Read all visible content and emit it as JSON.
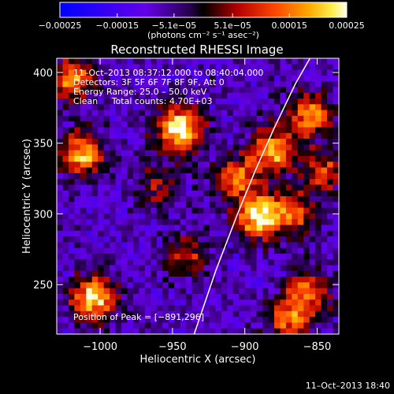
{
  "chart_data": {
    "type": "heatmap",
    "title": "Reconstructed RHESSI Image",
    "xlabel": "Heliocentric X (arcsec)",
    "ylabel": "Heliocentric Y (arcsec)",
    "xlim": [
      -1030,
      -835
    ],
    "ylim": [
      215,
      410
    ],
    "xticks": [
      -1000,
      -950,
      -900,
      -850
    ],
    "xtick_labels": [
      "−1000",
      "−950",
      "−900",
      "−850"
    ],
    "yticks": [
      250,
      300,
      350,
      400
    ],
    "ytick_labels": [
      "250",
      "300",
      "350",
      "400"
    ],
    "grid": false,
    "colorbar": {
      "orientation": "horizontal",
      "placement": "top",
      "colormap": "hot-with-blue-negatives",
      "range": [
        -0.00025,
        0.00025
      ],
      "unit_label": "(photons cm⁻² s⁻¹ asec⁻²)",
      "tick_labels": [
        "−0.00025",
        "−0.00015",
        "−5.1e−05",
        "5.1e−05",
        "0.00015",
        "0.00025"
      ],
      "tick_values": [
        -0.00025,
        -0.00015,
        -5.1e-05,
        5.1e-05,
        0.00015,
        0.00025
      ]
    },
    "info_lines": [
      "11–Oct–2013 08:37:12.000 to 08:40:04.000",
      "Detectors: 3F 5F 6F 7F 8F 9F, Att 0",
      "Energy Range: 25.0 – 50.0 keV",
      "Clean     Total counts: 4.70E+03"
    ],
    "peak_annotation": "Position of Peak = [−891,296]",
    "peak_position": [
      -891,
      296
    ],
    "limb_curve": [
      [
        -935,
        215
      ],
      [
        -920,
        260
      ],
      [
        -905,
        300
      ],
      [
        -893,
        330
      ],
      [
        -880,
        360
      ],
      [
        -865,
        392
      ],
      [
        -855,
        410
      ]
    ],
    "bright_sources": [
      {
        "x": -945,
        "y": 360,
        "intensity": 1.0
      },
      {
        "x": -1012,
        "y": 342,
        "intensity": 0.75
      },
      {
        "x": -1020,
        "y": 395,
        "intensity": 0.7
      },
      {
        "x": -890,
        "y": 298,
        "intensity": 0.95
      },
      {
        "x": -880,
        "y": 345,
        "intensity": 0.75
      },
      {
        "x": -905,
        "y": 325,
        "intensity": 0.6
      },
      {
        "x": -855,
        "y": 370,
        "intensity": 0.65
      },
      {
        "x": -1005,
        "y": 240,
        "intensity": 0.85
      },
      {
        "x": -855,
        "y": 245,
        "intensity": 0.6
      },
      {
        "x": -870,
        "y": 225,
        "intensity": 0.6
      },
      {
        "x": -940,
        "y": 270,
        "intensity": 0.4
      },
      {
        "x": -960,
        "y": 320,
        "intensity": 0.35
      },
      {
        "x": -865,
        "y": 300,
        "intensity": 0.5
      },
      {
        "x": -845,
        "y": 330,
        "intensity": 0.5
      }
    ],
    "colors": {
      "limb": "#ffffff",
      "background": "#000000",
      "negative": "#2a1ad8",
      "positive_high": "#fffff0"
    }
  },
  "footer": {
    "timestamp": "11–Oct–2013 18:40"
  }
}
